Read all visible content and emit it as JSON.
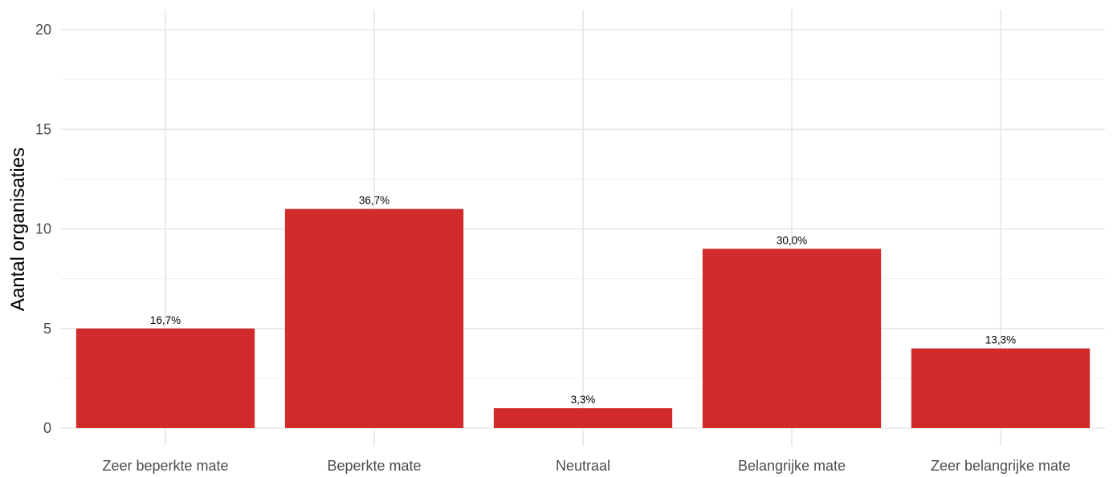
{
  "chart_data": {
    "type": "bar",
    "title": "",
    "xlabel": "",
    "ylabel": "Aantal organisaties",
    "categories": [
      "Zeer beperkte mate",
      "Beperkte mate",
      "Neutraal",
      "Belangrijke mate",
      "Zeer belangrijke mate"
    ],
    "values": [
      5,
      11,
      1,
      9,
      4
    ],
    "data_labels": [
      "16,7%",
      "36,7%",
      "3,3%",
      "30,0%",
      "13,3%"
    ],
    "ylim": [
      0,
      20
    ],
    "yticks": [
      "0",
      "5",
      "10",
      "15",
      "20"
    ],
    "grid": true,
    "bar_color": "#d22b2b"
  }
}
